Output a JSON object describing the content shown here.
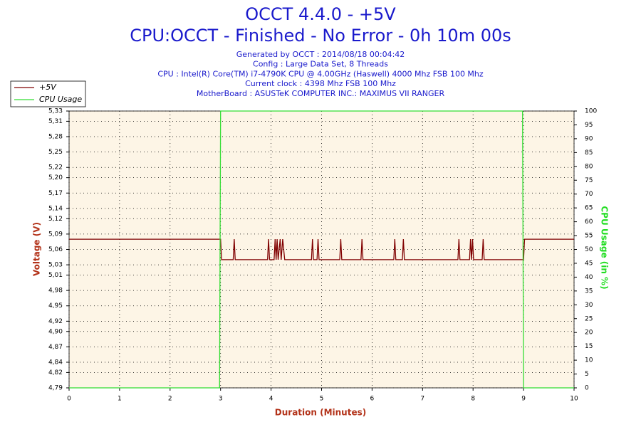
{
  "chart_data": {
    "type": "line",
    "title": "OCCT 4.4.0 - +5V",
    "subtitle": "CPU:OCCT - Finished - No Error - 0h 10m 00s",
    "info": [
      "Generated by OCCT : 2014/08/18 00:04:42",
      "Config : Large Data Set, 8 Threads",
      "CPU : Intel(R) Core(TM) i7-4790K CPU @ 4.00GHz (Haswell) 4000 Mhz FSB 100 Mhz",
      "Current clock : 4398 Mhz FSB 100 Mhz",
      "MotherBoard : ASUSTeK COMPUTER INC.: MAXIMUS VII RANGER"
    ],
    "xlabel": "Duration (Minutes)",
    "ylabel": "Voltage (V)",
    "y2label": "CPU Usage (in %)",
    "legend": "top-left",
    "grid": true,
    "x": [
      0,
      2.98,
      3.0,
      3.02,
      3.25,
      3.27,
      3.29,
      3.93,
      3.95,
      3.97,
      4.06,
      4.08,
      4.1,
      4.12,
      4.14,
      4.18,
      4.2,
      4.23,
      4.27,
      4.8,
      4.82,
      4.84,
      4.91,
      4.93,
      4.95,
      5.36,
      5.38,
      5.4,
      5.78,
      5.8,
      5.82,
      6.43,
      6.45,
      6.47,
      6.6,
      6.62,
      6.64,
      7.7,
      7.72,
      7.74,
      7.93,
      7.95,
      7.97,
      7.99,
      8.01,
      8.18,
      8.2,
      8.22,
      8.98,
      9.0,
      9.02,
      10
    ],
    "series": [
      {
        "name": "+5V",
        "color": "#800000",
        "values": [
          5.08,
          5.08,
          5.08,
          5.04,
          5.04,
          5.08,
          5.04,
          5.04,
          5.08,
          5.04,
          5.04,
          5.08,
          5.04,
          5.08,
          5.04,
          5.08,
          5.04,
          5.08,
          5.04,
          5.04,
          5.08,
          5.04,
          5.04,
          5.08,
          5.04,
          5.04,
          5.08,
          5.04,
          5.04,
          5.08,
          5.04,
          5.04,
          5.08,
          5.04,
          5.04,
          5.08,
          5.04,
          5.04,
          5.08,
          5.04,
          5.04,
          5.08,
          5.04,
          5.08,
          5.04,
          5.04,
          5.08,
          5.04,
          5.04,
          5.04,
          5.08,
          5.08
        ]
      },
      {
        "name": "CPU Usage",
        "color": "#33dd33",
        "axis": "y2",
        "values": [
          0,
          0,
          100,
          100,
          100,
          100,
          100,
          100,
          100,
          100,
          100,
          100,
          100,
          100,
          100,
          100,
          100,
          100,
          100,
          100,
          100,
          100,
          100,
          100,
          100,
          100,
          100,
          100,
          100,
          100,
          100,
          100,
          100,
          100,
          100,
          100,
          100,
          100,
          100,
          100,
          100,
          100,
          100,
          100,
          100,
          100,
          100,
          100,
          100,
          0,
          0,
          0
        ]
      }
    ],
    "xlim": [
      0,
      10
    ],
    "xticks": [
      0,
      1,
      2,
      3,
      4,
      5,
      6,
      7,
      8,
      9,
      10
    ],
    "ylim": [
      4.79,
      5.33
    ],
    "yticks": [
      {
        "value": 4.79,
        "label": "4,79"
      },
      {
        "value": 4.82,
        "label": "4,82"
      },
      {
        "value": 4.84,
        "label": "4,84"
      },
      {
        "value": 4.87,
        "label": "4,87"
      },
      {
        "value": 4.9,
        "label": "4,90"
      },
      {
        "value": 4.92,
        "label": "4,92"
      },
      {
        "value": 4.95,
        "label": "4,95"
      },
      {
        "value": 4.98,
        "label": "4,98"
      },
      {
        "value": 5.01,
        "label": "5,01"
      },
      {
        "value": 5.03,
        "label": "5,03"
      },
      {
        "value": 5.06,
        "label": "5,06"
      },
      {
        "value": 5.09,
        "label": "5,09"
      },
      {
        "value": 5.12,
        "label": "5,12"
      },
      {
        "value": 5.14,
        "label": "5,14"
      },
      {
        "value": 5.17,
        "label": "5,17"
      },
      {
        "value": 5.2,
        "label": "5,20"
      },
      {
        "value": 5.22,
        "label": "5,22"
      },
      {
        "value": 5.25,
        "label": "5,25"
      },
      {
        "value": 5.28,
        "label": "5,28"
      },
      {
        "value": 5.31,
        "label": "5,31"
      },
      {
        "value": 5.33,
        "label": "5,33"
      }
    ],
    "y2lim": [
      0,
      100
    ],
    "y2ticks": [
      0,
      5,
      10,
      15,
      20,
      25,
      30,
      35,
      40,
      45,
      50,
      55,
      60,
      65,
      70,
      75,
      80,
      85,
      90,
      95,
      100
    ]
  }
}
